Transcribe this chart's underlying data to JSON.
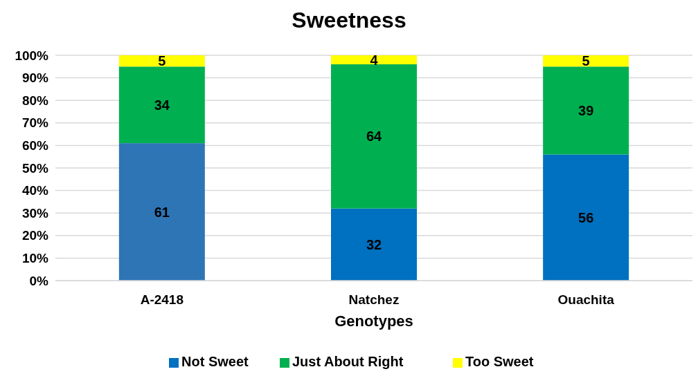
{
  "chart_data": {
    "type": "bar",
    "title": "Sweetness",
    "xlabel": "Genotypes",
    "categories": [
      "A-2418",
      "Natchez",
      "Ouachita"
    ],
    "stacked": true,
    "data_labels": true,
    "legend": "bottom",
    "grid": "y",
    "ylim": [
      0,
      100
    ],
    "yticks": [
      {
        "value": 0,
        "label": "0%"
      },
      {
        "value": 10,
        "label": "10%"
      },
      {
        "value": 20,
        "label": "20%"
      },
      {
        "value": 30,
        "label": "30%"
      },
      {
        "value": 40,
        "label": "40%"
      },
      {
        "value": 50,
        "label": "50%"
      },
      {
        "value": 60,
        "label": "60%"
      },
      {
        "value": 70,
        "label": "70%"
      },
      {
        "value": 80,
        "label": "80%"
      },
      {
        "value": 90,
        "label": "90%"
      },
      {
        "value": 100,
        "label": "100%"
      }
    ],
    "series": [
      {
        "name": "Not Sweet",
        "color": "#0070c0",
        "colors": [
          "#2e75b6",
          "#0070c0",
          "#0070c0"
        ],
        "values": [
          61,
          32,
          56
        ]
      },
      {
        "name": "Just About Right",
        "color": "#00b050",
        "values": [
          34,
          64,
          39
        ]
      },
      {
        "name": "Too Sweet",
        "color": "#ffff00",
        "values": [
          5,
          4,
          5
        ]
      }
    ]
  }
}
